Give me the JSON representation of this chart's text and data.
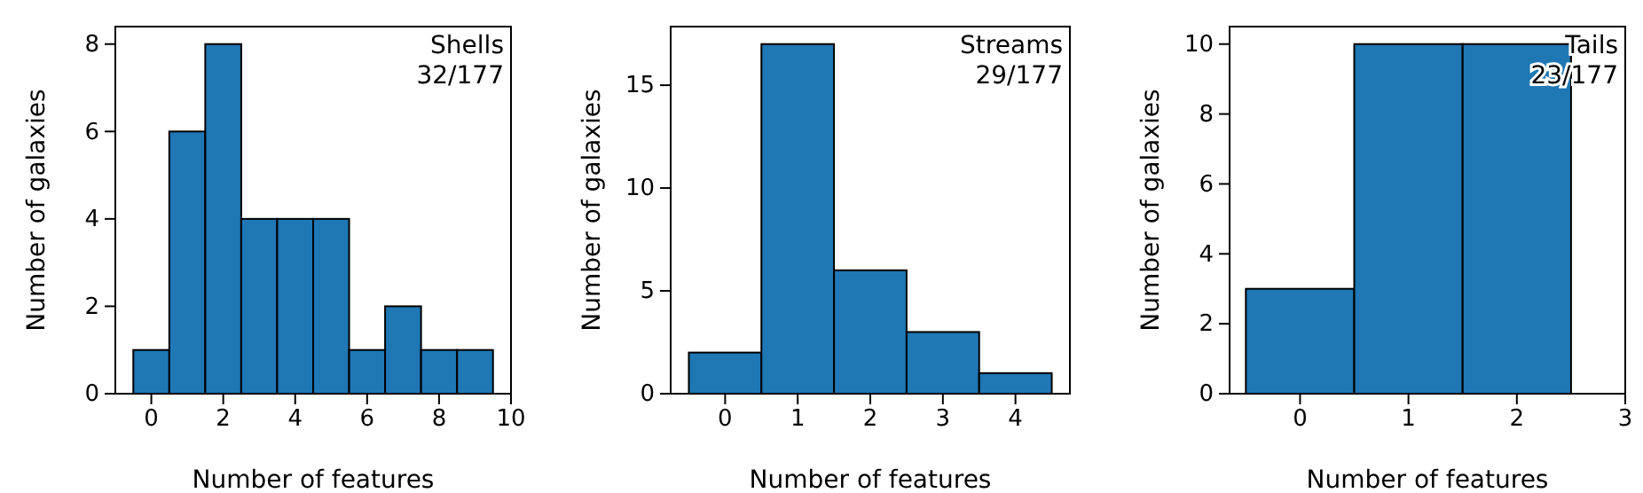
{
  "chart_data": [
    {
      "type": "histogram",
      "bins": [
        -0.5,
        0.5,
        1.5,
        2.5,
        3.5,
        4.5,
        5.5,
        6.5,
        7.5,
        8.5,
        9.5
      ],
      "values": [
        1,
        6,
        8,
        4,
        4,
        4,
        1,
        2,
        1,
        1
      ],
      "color": "#1f77b4",
      "xlim": [
        -1,
        10
      ],
      "xticks": [
        0,
        2,
        4,
        6,
        8,
        10
      ],
      "ylim": [
        0,
        8.4
      ],
      "yticks": [
        0,
        2,
        4,
        6,
        8
      ],
      "xlabel": "Number of features",
      "ylabel": "Number of galaxies",
      "annotations": [
        "Shells",
        "32/177"
      ]
    },
    {
      "type": "histogram",
      "bins": [
        -0.5,
        0.5,
        1.5,
        2.5,
        3.5,
        4.5
      ],
      "values": [
        2,
        17,
        6,
        3,
        1
      ],
      "color": "#1f77b4",
      "xlim": [
        -0.75,
        4.75
      ],
      "xticks": [
        0,
        1,
        2,
        3,
        4
      ],
      "ylim": [
        0,
        17.85
      ],
      "yticks": [
        0,
        5,
        10,
        15
      ],
      "xlabel": "Number of features",
      "ylabel": "Number of galaxies",
      "annotations": [
        "Streams",
        "29/177"
      ]
    },
    {
      "type": "histogram",
      "bins": [
        -0.5,
        0.5,
        1.5,
        2.5
      ],
      "values": [
        3,
        10,
        10
      ],
      "color": "#1f77b4",
      "xlim": [
        -0.65,
        3
      ],
      "xticks": [
        0,
        1,
        2,
        3
      ],
      "ylim": [
        0,
        10.5
      ],
      "yticks": [
        0,
        2,
        4,
        6,
        8,
        10
      ],
      "xlabel": "Number of features",
      "ylabel": "Number of galaxies",
      "annotations": [
        "Tails",
        "23/177"
      ]
    }
  ]
}
